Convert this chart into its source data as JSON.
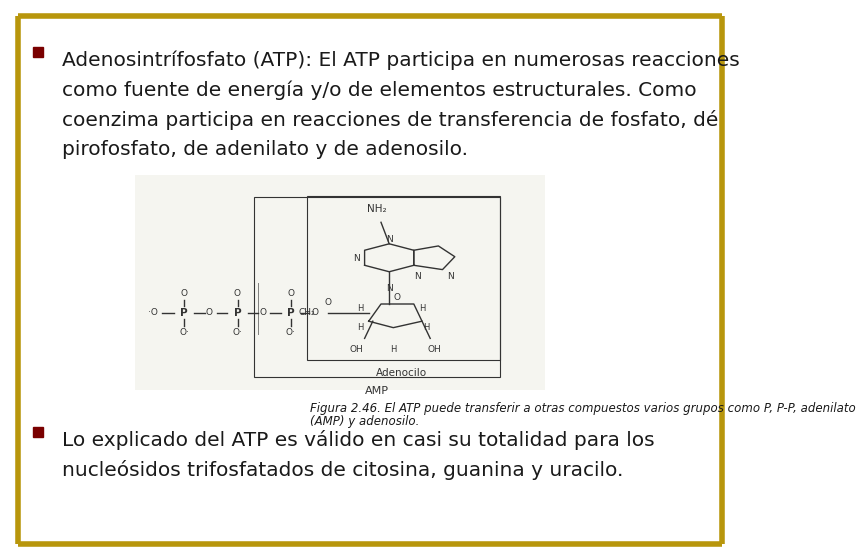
{
  "background_color": "#ffffff",
  "border_color_top": "#b8960c",
  "border_color_bottom": "#b8960c",
  "border_linewidth": 4,
  "bullet_color": "#7a0000",
  "bullet1_lines": [
    "Adenosintrífosfato (ATP): El ATP participa en numerosas reacciones",
    "como fuente de energía y/o de elementos estructurales. Como",
    "coenzima participa en reacciones de transferencia de fosfato, dé",
    "pirofosfato, de adenilato y de adenosilo."
  ],
  "bullet2_lines": [
    "Lo explicado del ATP es válido en casi su totalidad para los",
    "nucleósidos trifosfatados de citosina, guanina y uracilo."
  ],
  "caption_line1": "Figura 2.46. El ATP puede transferir a otras compuestos varios grupos como P, P-P, adenilato",
  "caption_line2": "(AMP) y adenosilo.",
  "text_color": "#1a1a1a",
  "text_fontsize": 14.5,
  "caption_fontsize": 8.5,
  "diagram_bg": "#e8e8e8",
  "diagram_draw_color": "#333333"
}
